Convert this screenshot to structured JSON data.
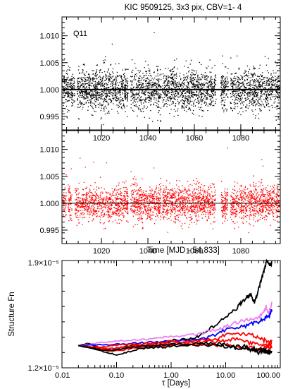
{
  "figure": {
    "title": "KIC 9509125,  3x3 pix, CBV=1- 4"
  },
  "chart_data": [
    {
      "type": "scatter",
      "panel": "top",
      "annotation": "Q11",
      "xlim": [
        1003,
        1097
      ],
      "ylim": [
        0.9925,
        1.0135
      ],
      "yticks": [
        "0.995",
        "1.000",
        "1.005",
        "1.010"
      ],
      "ytick_values": [
        0.995,
        1.0,
        1.005,
        1.01
      ],
      "xticks": [
        "1020",
        "1040",
        "1060",
        "1080"
      ],
      "xtick_values": [
        1020,
        1040,
        1060,
        1080
      ],
      "reference_line": 1.0,
      "point_color": "#000000",
      "gaps": [
        [
          1008.5,
          1009.5
        ],
        [
          1031.5,
          1032.6
        ],
        [
          1045.7,
          1046.3
        ],
        [
          1069.4,
          1071.3
        ],
        [
          1074.6,
          1075.6
        ]
      ],
      "scatter_sigma": 0.0019
    },
    {
      "type": "scatter",
      "panel": "middle",
      "xlim": [
        1003,
        1097
      ],
      "ylim": [
        0.9925,
        1.0135
      ],
      "yticks": [
        "0.995",
        "1.000",
        "1.005",
        "1.010"
      ],
      "ytick_values": [
        0.995,
        1.0,
        1.005,
        1.01
      ],
      "xticks": [
        "1020",
        "1040",
        "1060",
        "1080"
      ],
      "xtick_values": [
        1020,
        1040,
        1060,
        1080
      ],
      "xlabel": "Time [MJD - 54,833]",
      "reference_line": 1.0,
      "point_color": "#ff0000",
      "gaps": [
        [
          1005.0,
          1005.6
        ],
        [
          1007.3,
          1008.6
        ],
        [
          1031.5,
          1032.6
        ],
        [
          1045.7,
          1046.3
        ],
        [
          1069.2,
          1071.6
        ],
        [
          1074.4,
          1075.6
        ]
      ],
      "scatter_sigma": 0.0016
    },
    {
      "type": "line",
      "panel": "bottom",
      "xscale": "log",
      "xlim": [
        0.01,
        100
      ],
      "ylim": [
        1.2e-05,
        1.9e-05
      ],
      "xticks": [
        "0.01",
        "0.10",
        "1.00",
        "10.00",
        "100.00"
      ],
      "xtick_values": [
        0.01,
        0.1,
        1,
        10,
        100
      ],
      "ytick_labels": {
        "top": "1.9×10⁻⁵",
        "bottom": "1.2×10⁻⁵"
      },
      "xlabel": "τ [Days]",
      "ylabel": "Structure Fn",
      "series": [
        {
          "color": "#000000",
          "points": [
            [
              0.02,
              1.345
            ],
            [
              0.03,
              1.36
            ],
            [
              0.05,
              1.33
            ],
            [
              0.08,
              1.31
            ],
            [
              0.12,
              1.33
            ],
            [
              0.2,
              1.35
            ],
            [
              0.3,
              1.34
            ],
            [
              0.5,
              1.36
            ],
            [
              0.8,
              1.37
            ],
            [
              1.2,
              1.38
            ],
            [
              2,
              1.39
            ],
            [
              3,
              1.4
            ],
            [
              4,
              1.43
            ],
            [
              6,
              1.47
            ],
            [
              9,
              1.52
            ],
            [
              13,
              1.56
            ],
            [
              17,
              1.6
            ],
            [
              20,
              1.63
            ],
            [
              24,
              1.66
            ],
            [
              28,
              1.68
            ],
            [
              32,
              1.64
            ],
            [
              34,
              1.63
            ],
            [
              38,
              1.68
            ],
            [
              42,
              1.74
            ],
            [
              47,
              1.8
            ],
            [
              52,
              1.85
            ],
            [
              56,
              1.9
            ],
            [
              60,
              1.88
            ],
            [
              66,
              1.87
            ],
            [
              70,
              1.89
            ]
          ]
        },
        {
          "color": "#ee82ee",
          "points": [
            [
              0.02,
              1.345
            ],
            [
              0.04,
              1.36
            ],
            [
              0.07,
              1.37
            ],
            [
              0.1,
              1.375
            ],
            [
              0.15,
              1.38
            ],
            [
              0.25,
              1.385
            ],
            [
              0.4,
              1.39
            ],
            [
              0.7,
              1.4
            ],
            [
              1,
              1.405
            ],
            [
              2,
              1.41
            ],
            [
              4,
              1.43
            ],
            [
              7,
              1.45
            ],
            [
              10,
              1.47
            ],
            [
              15,
              1.49
            ],
            [
              22,
              1.51
            ],
            [
              30,
              1.52
            ],
            [
              40,
              1.53
            ],
            [
              50,
              1.56
            ],
            [
              55,
              1.6
            ],
            [
              60,
              1.56
            ],
            [
              65,
              1.58
            ],
            [
              70,
              1.63
            ]
          ]
        },
        {
          "color": "#0000ff",
          "points": [
            [
              0.02,
              1.345
            ],
            [
              0.04,
              1.35
            ],
            [
              0.07,
              1.35
            ],
            [
              0.12,
              1.355
            ],
            [
              0.2,
              1.36
            ],
            [
              0.35,
              1.365
            ],
            [
              0.6,
              1.37
            ],
            [
              1,
              1.375
            ],
            [
              2,
              1.38
            ],
            [
              4,
              1.39
            ],
            [
              7,
              1.42
            ],
            [
              10,
              1.45
            ],
            [
              15,
              1.46
            ],
            [
              22,
              1.47
            ],
            [
              30,
              1.49
            ],
            [
              40,
              1.5
            ],
            [
              50,
              1.52
            ],
            [
              60,
              1.53
            ],
            [
              65,
              1.55
            ],
            [
              70,
              1.58
            ]
          ]
        },
        {
          "color": "#ff0000",
          "points": [
            [
              0.02,
              1.345
            ],
            [
              0.04,
              1.335
            ],
            [
              0.07,
              1.34
            ],
            [
              0.12,
              1.35
            ],
            [
              0.2,
              1.355
            ],
            [
              0.35,
              1.36
            ],
            [
              0.6,
              1.365
            ],
            [
              1,
              1.37
            ],
            [
              2,
              1.37
            ],
            [
              4,
              1.38
            ],
            [
              7,
              1.39
            ],
            [
              10,
              1.42
            ],
            [
              14,
              1.43
            ],
            [
              20,
              1.42
            ],
            [
              28,
              1.42
            ],
            [
              38,
              1.4
            ],
            [
              50,
              1.38
            ],
            [
              60,
              1.37
            ],
            [
              70,
              1.38
            ]
          ]
        },
        {
          "color": "#ff0000",
          "points": [
            [
              0.02,
              1.345
            ],
            [
              0.04,
              1.33
            ],
            [
              0.07,
              1.325
            ],
            [
              0.12,
              1.33
            ],
            [
              0.2,
              1.34
            ],
            [
              0.35,
              1.35
            ],
            [
              0.6,
              1.355
            ],
            [
              1,
              1.36
            ],
            [
              2,
              1.365
            ],
            [
              4,
              1.37
            ],
            [
              7,
              1.37
            ],
            [
              10,
              1.38
            ],
            [
              15,
              1.39
            ],
            [
              22,
              1.37
            ],
            [
              30,
              1.36
            ],
            [
              40,
              1.35
            ],
            [
              50,
              1.34
            ],
            [
              60,
              1.35
            ],
            [
              70,
              1.36
            ]
          ]
        },
        {
          "color": "#ff0000",
          "points": [
            [
              0.02,
              1.345
            ],
            [
              0.04,
              1.33
            ],
            [
              0.07,
              1.31
            ],
            [
              0.12,
              1.315
            ],
            [
              0.2,
              1.33
            ],
            [
              0.35,
              1.335
            ],
            [
              0.6,
              1.34
            ],
            [
              1,
              1.345
            ],
            [
              2,
              1.35
            ],
            [
              4,
              1.35
            ],
            [
              7,
              1.345
            ],
            [
              10,
              1.35
            ],
            [
              15,
              1.34
            ],
            [
              22,
              1.33
            ],
            [
              30,
              1.33
            ],
            [
              40,
              1.32
            ],
            [
              50,
              1.33
            ],
            [
              60,
              1.34
            ],
            [
              70,
              1.33
            ]
          ]
        },
        {
          "color": "#000000",
          "points": [
            [
              0.02,
              1.345
            ],
            [
              0.04,
              1.32
            ],
            [
              0.07,
              1.3
            ],
            [
              0.1,
              1.285
            ],
            [
              0.15,
              1.3
            ],
            [
              0.25,
              1.32
            ],
            [
              0.4,
              1.33
            ],
            [
              0.7,
              1.335
            ],
            [
              1,
              1.34
            ],
            [
              2,
              1.345
            ],
            [
              4,
              1.35
            ],
            [
              7,
              1.345
            ],
            [
              10,
              1.34
            ],
            [
              15,
              1.33
            ],
            [
              22,
              1.32
            ],
            [
              30,
              1.31
            ],
            [
              40,
              1.3
            ],
            [
              50,
              1.31
            ],
            [
              60,
              1.3
            ],
            [
              70,
              1.31
            ]
          ]
        },
        {
          "color": "#000000",
          "points": [
            [
              0.02,
              1.345
            ],
            [
              0.04,
              1.325
            ],
            [
              0.07,
              1.31
            ],
            [
              0.12,
              1.325
            ],
            [
              0.2,
              1.335
            ],
            [
              0.35,
              1.345
            ],
            [
              0.6,
              1.35
            ],
            [
              1,
              1.355
            ],
            [
              2,
              1.36
            ],
            [
              4,
              1.36
            ],
            [
              7,
              1.355
            ],
            [
              10,
              1.35
            ],
            [
              15,
              1.34
            ],
            [
              22,
              1.34
            ],
            [
              30,
              1.33
            ],
            [
              40,
              1.32
            ],
            [
              50,
              1.32
            ],
            [
              60,
              1.31
            ],
            [
              70,
              1.3
            ]
          ]
        }
      ]
    }
  ]
}
